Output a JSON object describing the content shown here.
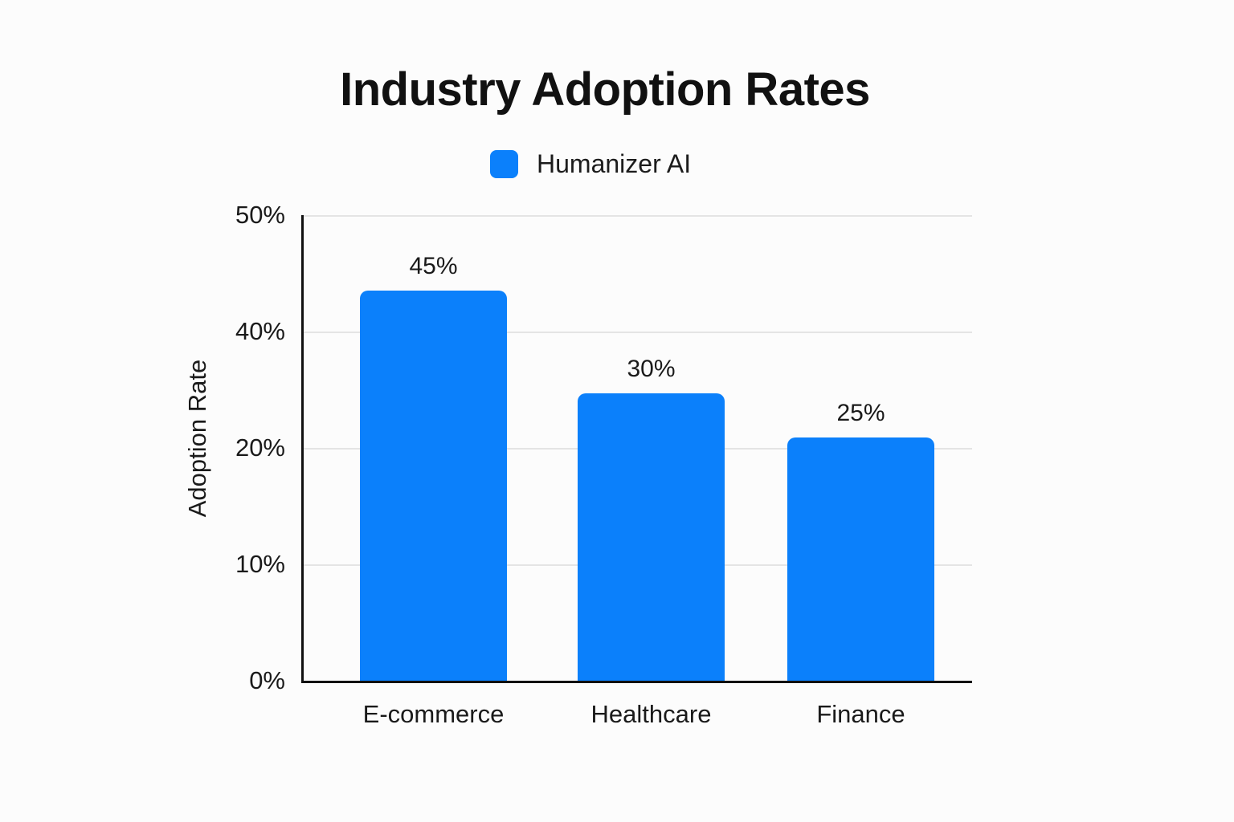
{
  "chart_data": {
    "type": "bar",
    "title": "Industry Adoption Rates",
    "legend": {
      "label": "Humanizer AI",
      "position": "top-center"
    },
    "ylabel": "Adoption Rate",
    "xlabel": "",
    "categories": [
      "E-commerce",
      "Healthcare",
      "Finance"
    ],
    "series": [
      {
        "name": "Humanizer AI",
        "values": [
          45,
          30,
          25
        ]
      }
    ],
    "data_labels": [
      "45%",
      "30%",
      "25%"
    ],
    "y_tick_labels_top_to_bottom": [
      "50%",
      "40%",
      "20%",
      "10%",
      "0%"
    ],
    "ylim": [
      0,
      50
    ],
    "grid": true,
    "legend_visible": true,
    "colors": {
      "bar": "#0b80fb",
      "grid": "#e4e4e4",
      "axis": "#111111",
      "text": "#1a1a1a",
      "background": "#fcfcfc"
    },
    "rendered_bar_height_pct": [
      83.8,
      61.7,
      52.2
    ]
  }
}
